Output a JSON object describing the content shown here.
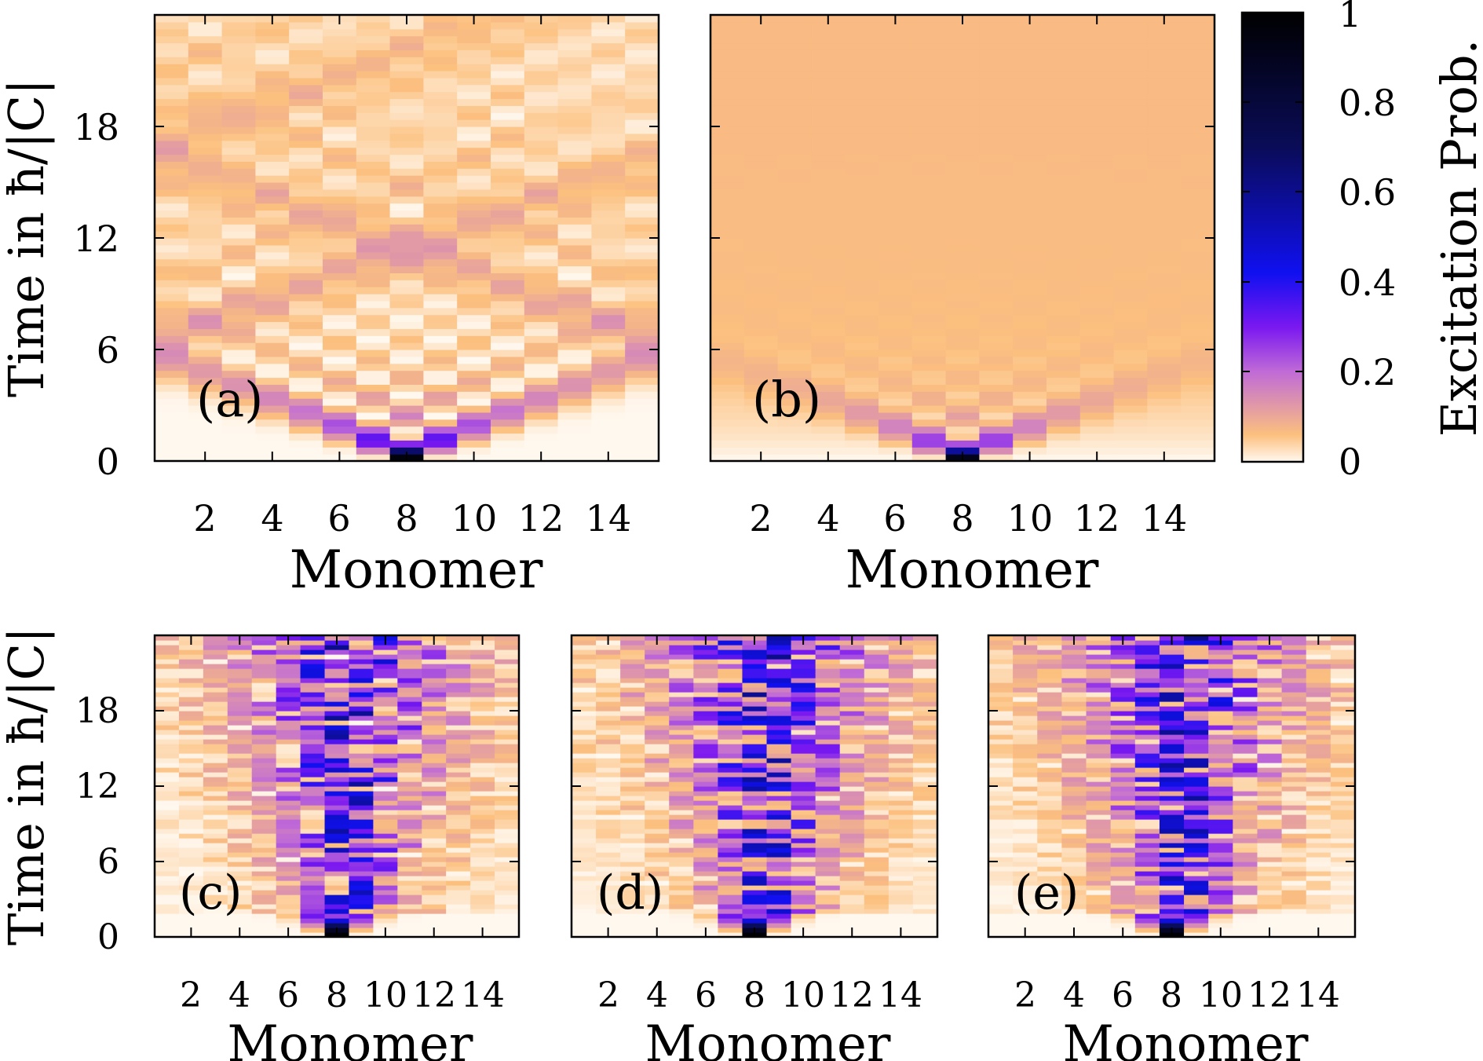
{
  "chart_data": [
    {
      "panel": "(a)",
      "type": "heatmap",
      "xlabel": "Monomer",
      "ylabel": "Time in ħ/|C|",
      "x_ticks": [
        "2",
        "4",
        "6",
        "8",
        "10",
        "12",
        "14"
      ],
      "y_ticks": [
        "0",
        "6",
        "12",
        "18"
      ],
      "xlim": [
        0.5,
        15.5
      ],
      "ylim": [
        0,
        24
      ],
      "initial_site": 8,
      "pattern": "symmetric ballistic spreading from site 8 with interference checkerboard",
      "data_description": "excitation probability vs monomer and time"
    },
    {
      "panel": "(b)",
      "type": "heatmap",
      "xlabel": "Monomer",
      "ylabel": "",
      "x_ticks": [
        "2",
        "4",
        "6",
        "8",
        "10",
        "12",
        "14"
      ],
      "y_ticks": [],
      "xlim": [
        0.5,
        15.5
      ],
      "ylim": [
        0,
        24
      ],
      "initial_site": 8,
      "pattern": "fast spreading then near-uniform probability ~0.07 across all sites"
    },
    {
      "panel": "(c)",
      "type": "heatmap",
      "xlabel": "Monomer",
      "ylabel": "Time in ħ/|C|",
      "x_ticks": [
        "2",
        "4",
        "6",
        "8",
        "10",
        "12",
        "14"
      ],
      "y_ticks": [
        "0",
        "6",
        "12",
        "18"
      ],
      "xlim": [
        0.5,
        15.5
      ],
      "ylim": [
        0,
        24
      ],
      "initial_site": 8,
      "pattern": "localized around sites 8-10, disorder realization 1"
    },
    {
      "panel": "(d)",
      "type": "heatmap",
      "xlabel": "Monomer",
      "ylabel": "",
      "x_ticks": [
        "2",
        "4",
        "6",
        "8",
        "10",
        "12",
        "14"
      ],
      "y_ticks": [],
      "xlim": [
        0.5,
        15.5
      ],
      "ylim": [
        0,
        24
      ],
      "initial_site": 8,
      "pattern": "partial localization, later transport to edges, disorder realization 2"
    },
    {
      "panel": "(e)",
      "type": "heatmap",
      "xlabel": "Monomer",
      "ylabel": "",
      "x_ticks": [
        "2",
        "4",
        "6",
        "8",
        "10",
        "12",
        "14"
      ],
      "y_ticks": [],
      "xlim": [
        0.5,
        15.5
      ],
      "ylim": [
        0,
        24
      ],
      "initial_site": 8,
      "pattern": "localized near 8-10 with scattered patches, disorder realization 3"
    }
  ],
  "colorbar": {
    "label": "Excitation Prob.",
    "ticks": [
      "0",
      "0.2",
      "0.4",
      "0.6",
      "0.8",
      "1"
    ],
    "range": [
      0,
      1
    ],
    "colors": [
      "#fff8ef",
      "#fcc07e",
      "#c06bd6",
      "#7a18f0",
      "#1010f0",
      "#0a0c58",
      "#000000"
    ]
  },
  "panel_labels": [
    "(a)",
    "(b)",
    "(c)",
    "(d)",
    "(e)"
  ]
}
